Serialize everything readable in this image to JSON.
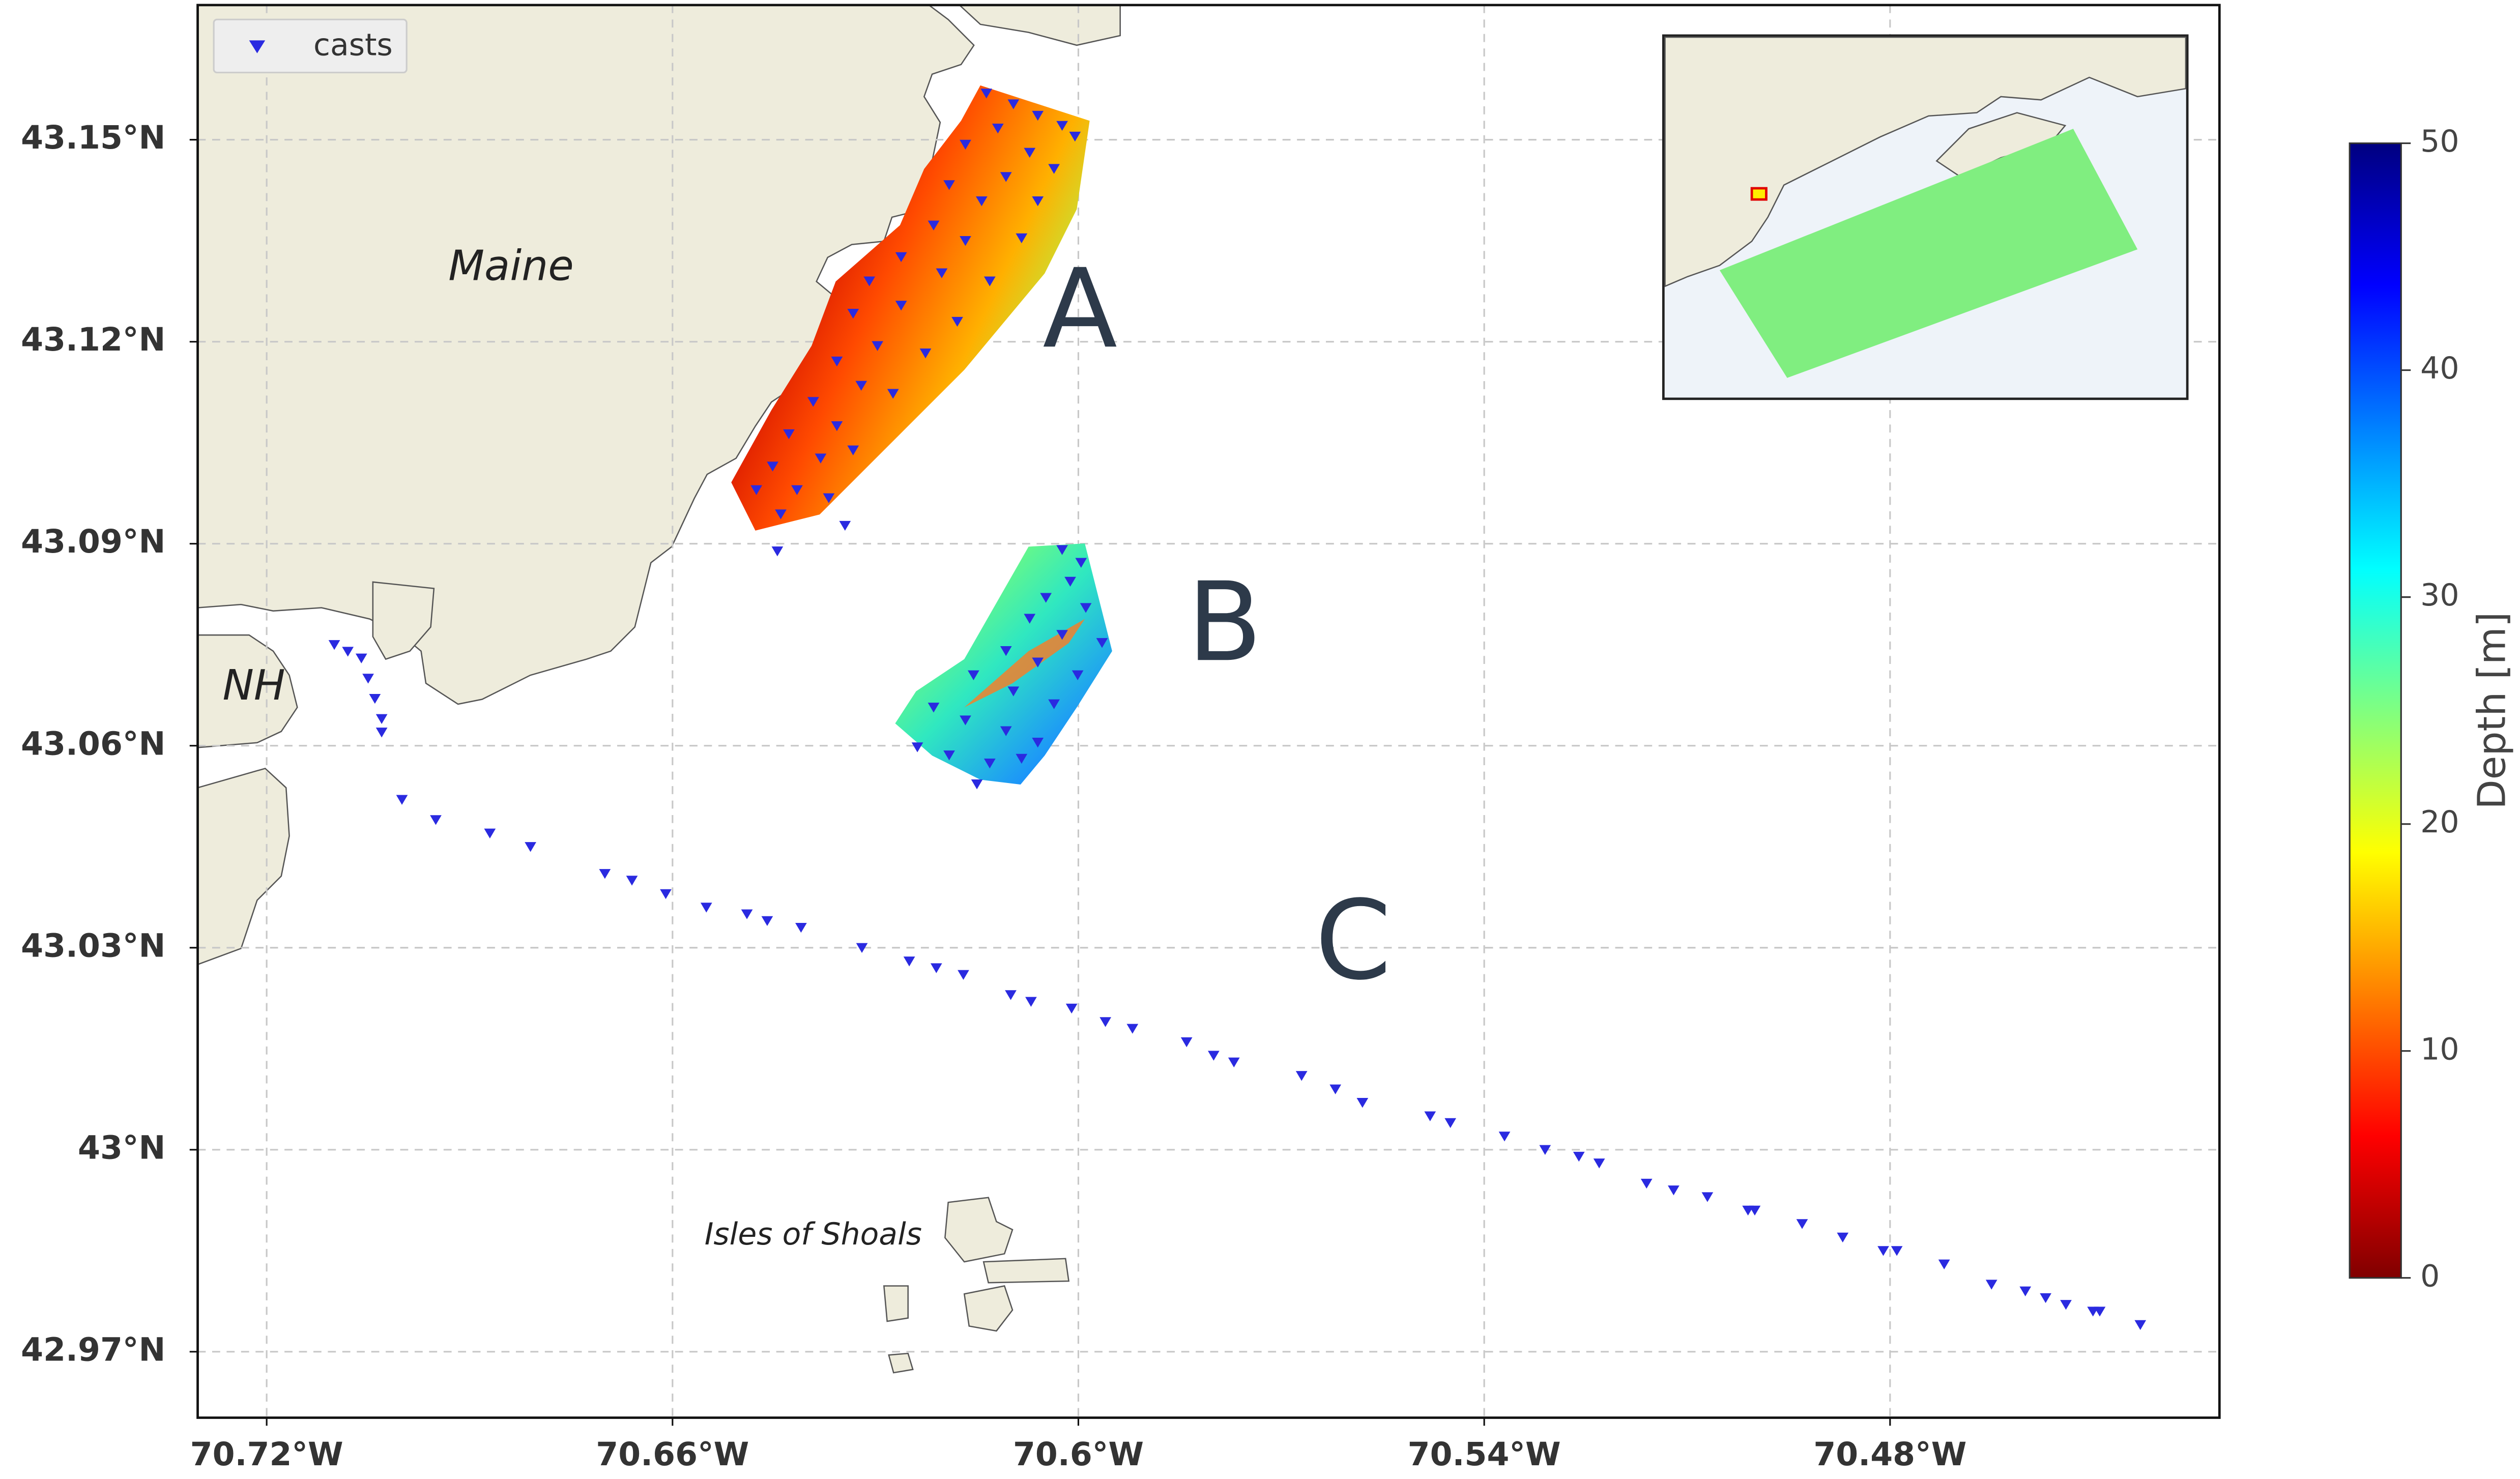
{
  "chart_data": {
    "type": "scatter",
    "annotations": [
      "Maine",
      "NH",
      "Isles of Shoals",
      "A",
      "B",
      "C"
    ],
    "legend": "upper left",
    "grid": true,
    "xlim": [
      -70.7302,
      -70.4313
    ],
    "ylim": [
      42.9602,
      43.17
    ],
    "xticks": [
      {
        "value": -70.72,
        "label": "70.72°W"
      },
      {
        "value": -70.66,
        "label": "70.66°W"
      },
      {
        "value": -70.6,
        "label": "70.6°W"
      },
      {
        "value": -70.54,
        "label": "70.54°W"
      },
      {
        "value": -70.48,
        "label": "70.48°W"
      }
    ],
    "yticks": [
      {
        "value": 42.97,
        "label": "42.97°N"
      },
      {
        "value": 43.0,
        "label": "43°N"
      },
      {
        "value": 43.03,
        "label": "43.03°N"
      },
      {
        "value": 43.06,
        "label": "43.06°N"
      },
      {
        "value": 43.09,
        "label": "43.09°N"
      },
      {
        "value": 43.12,
        "label": "43.12°N"
      },
      {
        "value": 43.15,
        "label": "43.15°N"
      }
    ],
    "colorbar": {
      "label": "Depth [m]",
      "lim": [
        0,
        50
      ],
      "ticks": [
        0,
        10,
        20,
        30,
        40,
        50
      ],
      "colors": [
        "#800000",
        "#ff0000",
        "#ff8000",
        "#ffff00",
        "#80ff80",
        "#00ffff",
        "#0080ff",
        "#0000ff",
        "#000080"
      ]
    },
    "series": [
      {
        "name": "casts",
        "color": "#2a2ae0",
        "x": [
          -70.6136,
          -70.6096,
          -70.606,
          -70.6024,
          -70.6005,
          -70.6119,
          -70.6167,
          -70.6072,
          -70.6036,
          -70.6107,
          -70.6191,
          -70.6143,
          -70.606,
          -70.6214,
          -70.6167,
          -70.6084,
          -70.6262,
          -70.6202,
          -70.6131,
          -70.6309,
          -70.6262,
          -70.6179,
          -70.6333,
          -70.6297,
          -70.6226,
          -70.6357,
          -70.6321,
          -70.6274,
          -70.6392,
          -70.6357,
          -70.6428,
          -70.6381,
          -70.6333,
          -70.6452,
          -70.6416,
          -70.6369,
          -70.6476,
          -70.644,
          -70.6345,
          -70.6445,
          -70.6024,
          -70.5996,
          -70.6012,
          -70.6048,
          -70.5989,
          -70.6072,
          -70.6024,
          -70.5965,
          -70.6107,
          -70.606,
          -70.6001,
          -70.6155,
          -70.6096,
          -70.6036,
          -70.6214,
          -70.6167,
          -70.6107,
          -70.606,
          -70.6238,
          -70.6191,
          -70.6131,
          -70.6084,
          -70.615,
          -70.71,
          -70.708,
          -70.706,
          -70.705,
          -70.704,
          -70.703,
          -70.703,
          -70.7,
          -70.695,
          -70.687,
          -70.681,
          -70.67,
          -70.666,
          -70.661,
          -70.655,
          -70.649,
          -70.646,
          -70.641,
          -70.632,
          -70.625,
          -70.621,
          -70.617,
          -70.61,
          -70.607,
          -70.601,
          -70.596,
          -70.592,
          -70.584,
          -70.58,
          -70.577,
          -70.567,
          -70.562,
          -70.558,
          -70.548,
          -70.545,
          -70.537,
          -70.531,
          -70.526,
          -70.523,
          -70.516,
          -70.512,
          -70.507,
          -70.501,
          -70.5,
          -70.493,
          -70.487,
          -70.481,
          -70.479,
          -70.472,
          -70.465,
          -70.46,
          -70.457,
          -70.454,
          -70.45,
          -70.449,
          -70.443
        ],
        "y": [
          43.1569,
          43.1553,
          43.1536,
          43.1521,
          43.1505,
          43.1517,
          43.1493,
          43.1481,
          43.1457,
          43.1445,
          43.1433,
          43.1409,
          43.1409,
          43.1373,
          43.135,
          43.1354,
          43.1326,
          43.1302,
          43.129,
          43.129,
          43.1254,
          43.123,
          43.1242,
          43.1194,
          43.1183,
          43.1171,
          43.1135,
          43.1123,
          43.1111,
          43.1075,
          43.1063,
          43.1027,
          43.1039,
          43.1015,
          43.098,
          43.0968,
          43.098,
          43.0944,
          43.0927,
          43.0889,
          43.0891,
          43.0872,
          43.0844,
          43.082,
          43.0805,
          43.0789,
          43.0765,
          43.0753,
          43.0741,
          43.0724,
          43.0705,
          43.0705,
          43.0681,
          43.0662,
          43.0657,
          43.0638,
          43.0622,
          43.0605,
          43.0598,
          43.0586,
          43.0574,
          43.0581,
          43.0543,
          43.075,
          43.074,
          43.073,
          43.07,
          43.067,
          43.064,
          43.062,
          43.052,
          43.049,
          43.047,
          43.045,
          43.041,
          43.04,
          43.038,
          43.036,
          43.035,
          43.034,
          43.033,
          43.03,
          43.028,
          43.027,
          43.026,
          43.023,
          43.022,
          43.021,
          43.019,
          43.018,
          43.016,
          43.014,
          43.013,
          43.011,
          43.009,
          43.007,
          43.005,
          43.004,
          43.002,
          43.0,
          42.999,
          42.998,
          42.995,
          42.994,
          42.993,
          42.991,
          42.991,
          42.989,
          42.987,
          42.985,
          42.985,
          42.983,
          42.98,
          42.979,
          42.978,
          42.977,
          42.976,
          42.976,
          42.974
        ]
      }
    ]
  }
}
